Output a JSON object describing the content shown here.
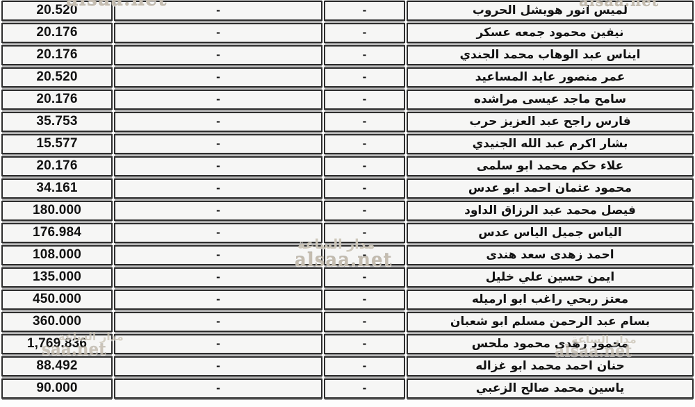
{
  "watermarks": {
    "site_text": "alsaa.net",
    "site_text_partial": "saa.net",
    "brand_ar": "مدار الساعة"
  },
  "table": {
    "rows": [
      {
        "amount": "20.520",
        "col2": "-",
        "col3": "-",
        "name": "لميس انور هويشل الحروب"
      },
      {
        "amount": "20.176",
        "col2": "-",
        "col3": "-",
        "name": "نيفين محمود جمعه عسكر"
      },
      {
        "amount": "20.176",
        "col2": "-",
        "col3": "-",
        "name": "ايناس عبد الوهاب محمد الجندي"
      },
      {
        "amount": "20.520",
        "col2": "-",
        "col3": "-",
        "name": "عمر منصور عايد المساعيد"
      },
      {
        "amount": "20.176",
        "col2": "-",
        "col3": "-",
        "name": "سامح ماجد عيسى مراشده"
      },
      {
        "amount": "35.753",
        "col2": "-",
        "col3": "-",
        "name": "فارس راجح عبد العزيز حرب"
      },
      {
        "amount": "15.577",
        "col2": "-",
        "col3": "-",
        "name": "بشار اكرم عبد الله الجنيدي"
      },
      {
        "amount": "20.176",
        "col2": "-",
        "col3": "-",
        "name": "علاء حكم محمد ابو سلمى"
      },
      {
        "amount": "34.161",
        "col2": "-",
        "col3": "-",
        "name": "محمود عثمان احمد ابو عدس"
      },
      {
        "amount": "180.000",
        "col2": "-",
        "col3": "-",
        "name": "فيصل محمد عبد الرزاق الداود"
      },
      {
        "amount": "176.984",
        "col2": "-",
        "col3": "-",
        "name": "الياس جميل الياس عدس"
      },
      {
        "amount": "108.000",
        "col2": "-",
        "col3": "-",
        "name": "احمد زهدى سعد هندى"
      },
      {
        "amount": "135.000",
        "col2": "-",
        "col3": "-",
        "name": "ايمن حسين علي خليل"
      },
      {
        "amount": "450.000",
        "col2": "-",
        "col3": "-",
        "name": "معتز ربحي راغب ابو ارميله"
      },
      {
        "amount": "360.000",
        "col2": "-",
        "col3": "-",
        "name": "بسام عبد الرحمن مسلم ابو شعبان"
      },
      {
        "amount": "1,769.836",
        "col2": "-",
        "col3": "-",
        "name": "محمود زهدى محمود ملحس"
      },
      {
        "amount": "88.492",
        "col2": "-",
        "col3": "-",
        "name": "حنان احمد محمد ابو غزاله"
      },
      {
        "amount": "90.000",
        "col2": "-",
        "col3": "-",
        "name": "ياسين محمد صالح الزعبي"
      }
    ]
  }
}
